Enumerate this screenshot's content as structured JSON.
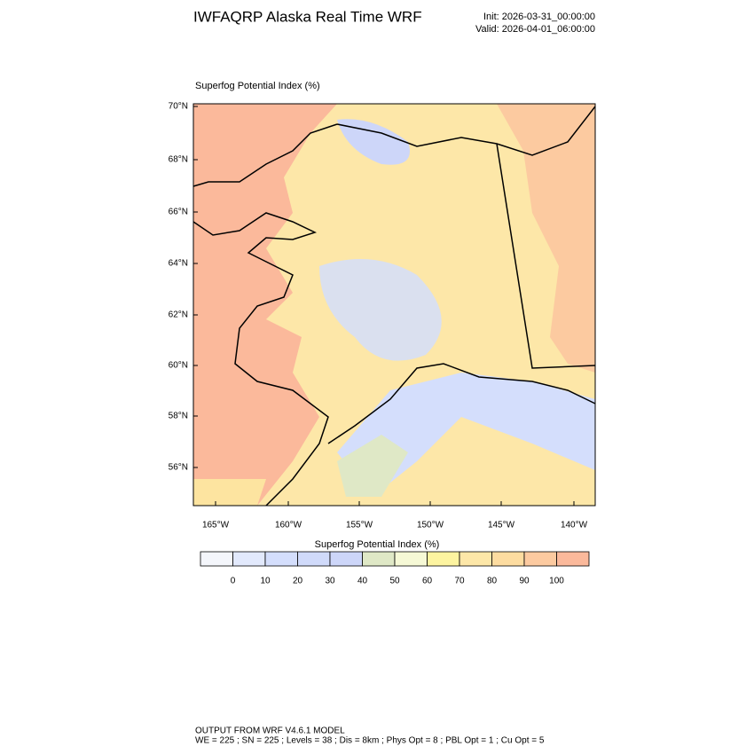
{
  "header": {
    "title": "IWFAQRP Alaska Real Time WRF",
    "init": "Init: 2026-03-31_00:00:00",
    "valid": "Valid: 2026-04-01_06:00:00"
  },
  "map": {
    "subtitle": "Superfog Potential Index   (%)",
    "lat_labels": [
      "70°N",
      "68°N",
      "66°N",
      "64°N",
      "62°N",
      "60°N",
      "58°N",
      "56°N"
    ],
    "lon_labels": [
      "165°W",
      "160°W",
      "155°W",
      "150°W",
      "145°W",
      "140°W"
    ]
  },
  "colorbar": {
    "title": "Superfog Potential Index  (%)",
    "colors": [
      "#f4f6fb",
      "#e2e9fc",
      "#d4defc",
      "#d0dafa",
      "#cdd6f9",
      "#dfe8c6",
      "#f6f9d6",
      "#fdf4a0",
      "#fde7a8",
      "#fddca0",
      "#fccaa0",
      "#fbb99b"
    ],
    "levels": [
      0,
      10,
      20,
      30,
      40,
      50,
      60,
      70,
      80,
      90,
      100
    ]
  },
  "footer": {
    "line1": "OUTPUT FROM WRF V4.6.1 MODEL",
    "line2": "WE = 225 ; SN = 225 ; Levels = 38 ; Dis = 8km ; Phys Opt = 8 ; PBL Opt = 1 ; Cu Opt = 5"
  }
}
